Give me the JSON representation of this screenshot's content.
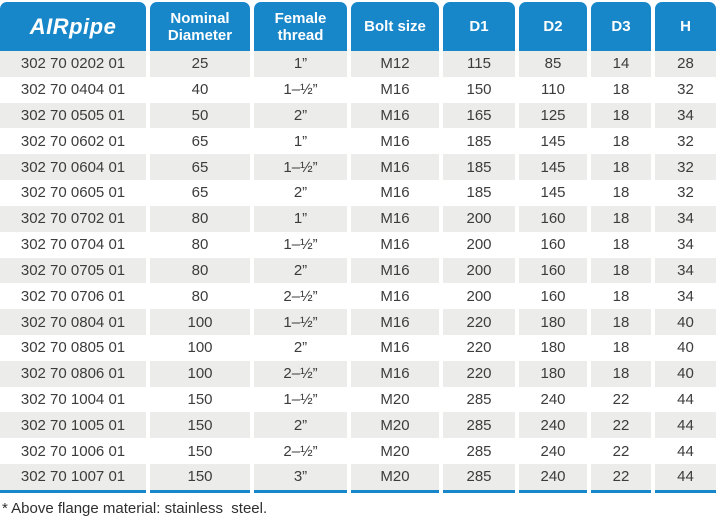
{
  "brand": {
    "air": "AIR",
    "pipe": "pipe"
  },
  "colors": {
    "header_blue": "#1887C9",
    "row_gray": "#ECECEA",
    "text_dark": "#3C3C3C",
    "rule_blue": "#1887C9"
  },
  "table": {
    "headers": [
      {
        "line1": "Nominal",
        "line2": "Diameter"
      },
      {
        "line1": "Female",
        "line2": "thread"
      },
      {
        "line1": "Bolt size"
      },
      {
        "line1": "D1"
      },
      {
        "line1": "D2"
      },
      {
        "line1": "D3"
      },
      {
        "line1": "H"
      }
    ],
    "rows": [
      [
        "302 70 0202 01",
        "25",
        "1”",
        "M12",
        "115",
        "85",
        "14",
        "28"
      ],
      [
        "302 70 0404 01",
        "40",
        "1–½”",
        "M16",
        "150",
        "110",
        "18",
        "32"
      ],
      [
        "302 70 0505 01",
        "50",
        "2”",
        "M16",
        "165",
        "125",
        "18",
        "34"
      ],
      [
        "302 70 0602 01",
        "65",
        "1”",
        "M16",
        "185",
        "145",
        "18",
        "32"
      ],
      [
        "302 70 0604 01",
        "65",
        "1–½”",
        "M16",
        "185",
        "145",
        "18",
        "32"
      ],
      [
        "302 70 0605 01",
        "65",
        "2”",
        "M16",
        "185",
        "145",
        "18",
        "32"
      ],
      [
        "302 70 0702 01",
        "80",
        "1”",
        "M16",
        "200",
        "160",
        "18",
        "34"
      ],
      [
        "302 70 0704 01",
        "80",
        "1–½”",
        "M16",
        "200",
        "160",
        "18",
        "34"
      ],
      [
        "302 70 0705 01",
        "80",
        "2”",
        "M16",
        "200",
        "160",
        "18",
        "34"
      ],
      [
        "302 70 0706 01",
        "80",
        "2–½”",
        "M16",
        "200",
        "160",
        "18",
        "34"
      ],
      [
        "302 70 0804 01",
        "100",
        "1–½”",
        "M16",
        "220",
        "180",
        "18",
        "40"
      ],
      [
        "302 70 0805 01",
        "100",
        "2”",
        "M16",
        "220",
        "180",
        "18",
        "40"
      ],
      [
        "302 70 0806 01",
        "100",
        "2–½”",
        "M16",
        "220",
        "180",
        "18",
        "40"
      ],
      [
        "302 70 1004 01",
        "150",
        "1–½”",
        "M20",
        "285",
        "240",
        "22",
        "44"
      ],
      [
        "302 70 1005 01",
        "150",
        "2”",
        "M20",
        "285",
        "240",
        "22",
        "44"
      ],
      [
        "302 70 1006 01",
        "150",
        "2–½”",
        "M20",
        "285",
        "240",
        "22",
        "44"
      ],
      [
        "302 70 1007 01",
        "150",
        "3”",
        "M20",
        "285",
        "240",
        "22",
        "44"
      ]
    ]
  },
  "footnote": "* Above flange material: stainless  steel."
}
